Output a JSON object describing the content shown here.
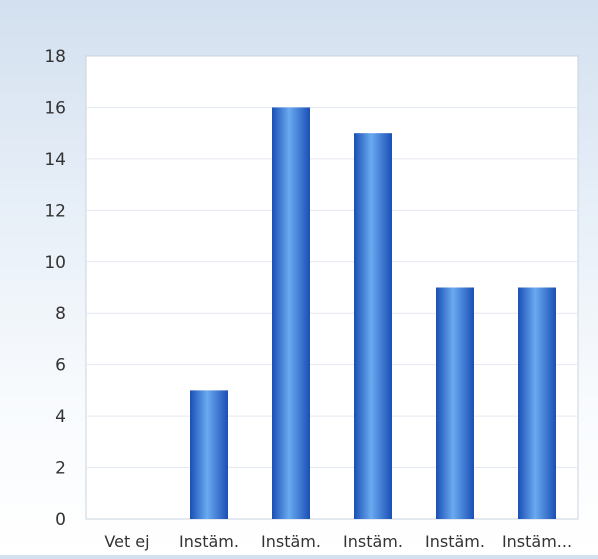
{
  "chart_data": {
    "type": "bar",
    "title": "",
    "xlabel": "",
    "ylabel": "",
    "categories": [
      "Vet ej",
      "Instäm.",
      "Instäm.",
      "Instäm.",
      "Instäm.",
      "Instäm..."
    ],
    "values": [
      0,
      5,
      16,
      15,
      9,
      9
    ],
    "ylim": [
      0,
      18
    ],
    "yticks": [
      0,
      2,
      4,
      6,
      8,
      10,
      12,
      14,
      16,
      18
    ],
    "grid": true,
    "legend": "none",
    "colors": {
      "bar_dark": "#1a4fb5",
      "bar_light": "#6aaaf0",
      "gridline": "#e3e9f1",
      "plot_border": "#c9d4e2",
      "plot_background": "#ffffff"
    }
  }
}
